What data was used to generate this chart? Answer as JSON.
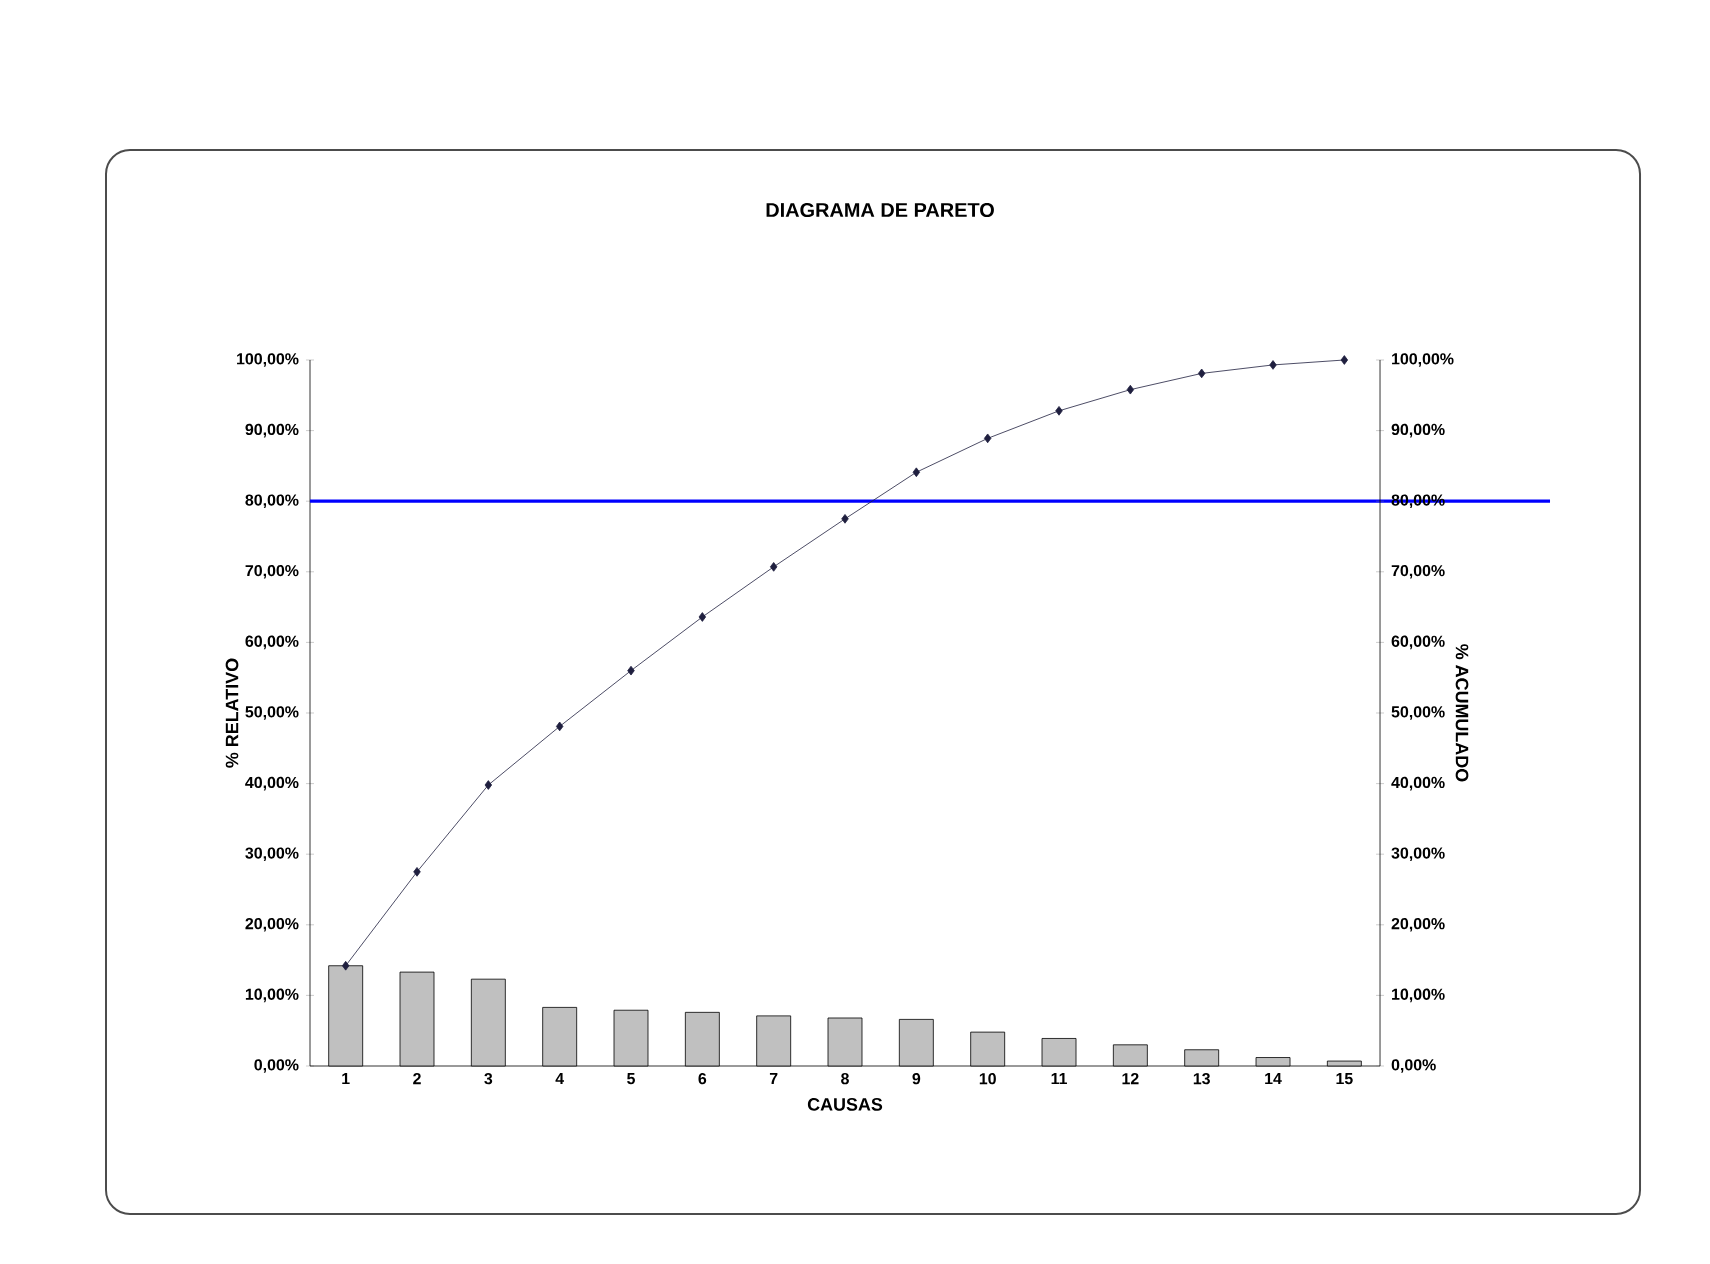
{
  "chart_data": {
    "type": "bar",
    "title": "DIAGRAMA DE PARETO",
    "xlabel": "CAUSAS",
    "ylabel": "% RELATIVO",
    "y2label": "% ACUMULADO",
    "categories": [
      "1",
      "2",
      "3",
      "4",
      "5",
      "6",
      "7",
      "8",
      "9",
      "10",
      "11",
      "12",
      "13",
      "14",
      "15"
    ],
    "series": [
      {
        "color": "#c0c0c0",
        "values": [
          14.2,
          13.3,
          12.3,
          8.3,
          7.9,
          7.6,
          7.1,
          6.8,
          6.6,
          4.8,
          3.9,
          3.0,
          2.3,
          1.2,
          0.7
        ]
      },
      {
        "type": "line",
        "axis": "y2",
        "color": "#1f1f3f",
        "marker": "diamond",
        "values": [
          14.2,
          27.5,
          39.8,
          48.1,
          56.0,
          63.6,
          70.7,
          77.5,
          84.1,
          88.9,
          92.8,
          95.8,
          98.1,
          99.3,
          100
        ]
      }
    ],
    "ylim": [
      0,
      100
    ],
    "yticks": [
      {
        "value": 0,
        "label": "0,00%"
      },
      {
        "value": 10,
        "label": "10,00%"
      },
      {
        "value": 20,
        "label": "20,00%"
      },
      {
        "value": 30,
        "label": "30,00%"
      },
      {
        "value": 40,
        "label": "40,00%"
      },
      {
        "value": 50,
        "label": "50,00%"
      },
      {
        "value": 60,
        "label": "60,00%"
      },
      {
        "value": 70,
        "label": "70,00%"
      },
      {
        "value": 80,
        "label": "80,00%"
      },
      {
        "value": 90,
        "label": "90,00%"
      },
      {
        "value": 100,
        "label": "100,00%"
      }
    ],
    "y2lim": [
      0,
      100
    ],
    "y2ticks": [
      {
        "value": 0,
        "label": "0,00%"
      },
      {
        "value": 10,
        "label": "10,00%"
      },
      {
        "value": 20,
        "label": "20,00%"
      },
      {
        "value": 30,
        "label": "30,00%"
      },
      {
        "value": 40,
        "label": "40,00%"
      },
      {
        "value": 50,
        "label": "50,00%"
      },
      {
        "value": 60,
        "label": "60,00%"
      },
      {
        "value": 70,
        "label": "70,00%"
      },
      {
        "value": 80,
        "label": "80,00%"
      },
      {
        "value": 90,
        "label": "90,00%"
      },
      {
        "value": 100,
        "label": "100,00%"
      }
    ],
    "ref_lines": [
      {
        "axis": "y",
        "value": 80,
        "color": "#0000ff"
      }
    ],
    "grid": false
  }
}
